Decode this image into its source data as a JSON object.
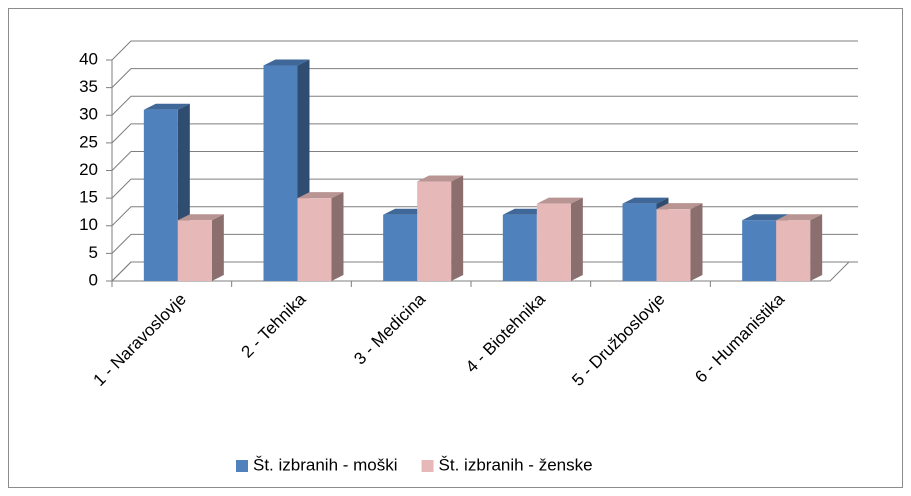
{
  "chart_data": {
    "type": "bar3d",
    "categories": [
      "1 - Naravoslovje",
      "2 - Tehnika",
      "3 - Medicina",
      "4 - Biotehnika",
      "5 - Družboslovje",
      "6 - Humanistika"
    ],
    "series": [
      {
        "name": "Št. izbranih - moški",
        "color": "#4f81bd",
        "values": [
          31,
          39,
          12,
          12,
          14,
          11
        ]
      },
      {
        "name": "Št. izbranih - ženske",
        "color": "#e6b9b8",
        "values": [
          11,
          15,
          18,
          14,
          13,
          11
        ]
      }
    ],
    "ylim": [
      0,
      40
    ],
    "yticks": [
      0,
      5,
      10,
      15,
      20,
      25,
      30,
      35,
      40
    ],
    "grid": true,
    "legend": "bottom"
  }
}
